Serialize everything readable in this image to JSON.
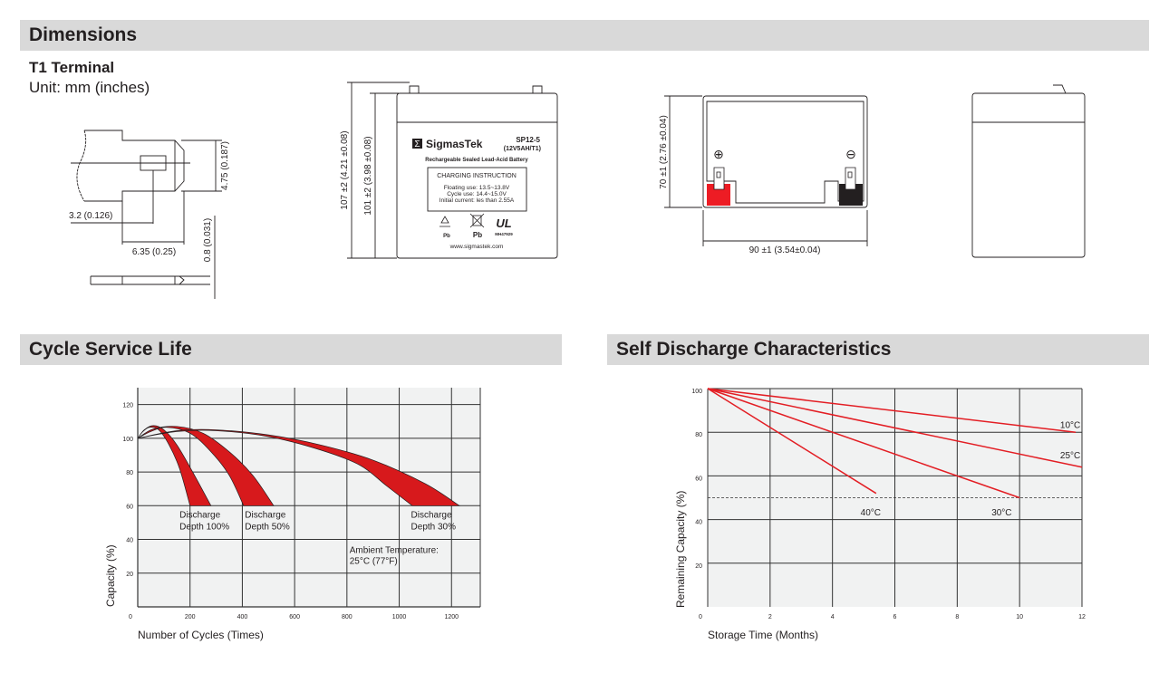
{
  "sections": {
    "dimensions": "Dimensions",
    "cycle_life": "Cycle Service Life",
    "self_discharge": "Self Discharge Characteristics"
  },
  "terminal": {
    "title": "T1 Terminal",
    "unit": "Unit: mm (inches)",
    "dim_height": "4.75 (0.187)",
    "dim_hole": "3.2 (0.126)",
    "dim_width": "6.35 (0.25)",
    "dim_thickness": "0.8 (0.031)"
  },
  "front_view": {
    "dim_total_height": "107 ±2 (4.21 ±0.08)",
    "dim_case_height": "101 ±2 (3.98 ±0.08)",
    "brand": "SigmasTek",
    "brand_logo": "Σ",
    "model": "SP12-5",
    "model_spec": "(12V5AH/T1)",
    "battery_type": "Rechargeable Sealed Lead-Acid Battery",
    "charging_title": "CHARGING INSTRUCTION",
    "charging_lines": [
      "Floating use: 13.5~13.8V",
      "Cycle use: 14.4~15.0V",
      "Initial current: les than 2.55A"
    ],
    "recycle_label": "Pb",
    "bin_label": "Pb",
    "ul_code": "MH47929",
    "website": "www.sigmastek.com"
  },
  "top_view": {
    "dim_depth": "70 ±1 (2.76 ±0.04)",
    "dim_width": "90 ±1 (3.54±0.04)",
    "positive_symbol": "⊕",
    "negative_symbol": "⊖",
    "positive_color": "#ed1c24",
    "negative_color": "#231f20"
  },
  "chart_data": [
    {
      "type": "area",
      "title": "",
      "xlabel": "Number of Cycles (Times)",
      "ylabel": "Capacity (%)",
      "xlim": [
        0,
        1310
      ],
      "ylim": [
        0,
        130
      ],
      "xticks": [
        0,
        200,
        400,
        600,
        800,
        1000,
        1200
      ],
      "yticks": [
        20,
        40,
        60,
        80,
        100,
        120
      ],
      "grid": true,
      "band_color": "#d7191c",
      "series": [
        {
          "name": "Discharge Depth 100%",
          "upper": [
            [
              0,
              100
            ],
            [
              25,
              105
            ],
            [
              60,
              107.5
            ],
            [
              100,
              105
            ],
            [
              150,
              96
            ],
            [
              210,
              80
            ],
            [
              280,
              60
            ]
          ],
          "lower": [
            [
              0,
              100
            ],
            [
              20,
              104
            ],
            [
              45,
              106.5
            ],
            [
              80,
              105
            ],
            [
              120,
              96
            ],
            [
              160,
              82
            ],
            [
              200,
              60
            ]
          ]
        },
        {
          "name": "Discharge Depth 50%",
          "upper": [
            [
              0,
              100
            ],
            [
              60,
              105.5
            ],
            [
              150,
              107
            ],
            [
              250,
              103
            ],
            [
              350,
              92
            ],
            [
              440,
              78
            ],
            [
              520,
              60
            ]
          ],
          "lower": [
            [
              0,
              100
            ],
            [
              50,
              104
            ],
            [
              110,
              106.5
            ],
            [
              200,
              103
            ],
            [
              280,
              92
            ],
            [
              350,
              78
            ],
            [
              405,
              60
            ]
          ]
        },
        {
          "name": "Discharge Depth 30%",
          "upper": [
            [
              0,
              100
            ],
            [
              150,
              104.5
            ],
            [
              300,
              105
            ],
            [
              500,
              102
            ],
            [
              700,
              96
            ],
            [
              900,
              87
            ],
            [
              1100,
              73
            ],
            [
              1230,
              60
            ]
          ],
          "lower": [
            [
              0,
              100
            ],
            [
              150,
              104
            ],
            [
              300,
              104.5
            ],
            [
              500,
              101
            ],
            [
              700,
              93
            ],
            [
              850,
              84
            ],
            [
              950,
              72
            ],
            [
              1050,
              60
            ]
          ]
        }
      ],
      "labels": [
        {
          "lines": [
            "Discharge",
            "Depth 100%"
          ],
          "x": 160,
          "y": 53
        },
        {
          "lines": [
            "Discharge",
            "Depth 50%"
          ],
          "x": 410,
          "y": 53
        },
        {
          "lines": [
            "Discharge",
            "Depth 30%"
          ],
          "x": 1045,
          "y": 53
        }
      ],
      "annotation": {
        "lines": [
          "Ambient Temperature:",
          "25°C (77°F)"
        ],
        "x": 810,
        "y": 32
      }
    },
    {
      "type": "line",
      "title": "",
      "xlabel": "Storage Time (Months)",
      "ylabel": "Remaining Capacity (%)",
      "xlim": [
        0,
        12
      ],
      "ylim": [
        0,
        100
      ],
      "xticks": [
        0,
        2,
        4,
        6,
        8,
        10,
        12
      ],
      "yticks": [
        20,
        40,
        60,
        80,
        100
      ],
      "grid": true,
      "reference_line": 50,
      "line_color": "#e31e24",
      "series": [
        {
          "name": "10°C",
          "points": [
            [
              0,
              100
            ],
            [
              11.8,
              80
            ]
          ],
          "label_at": [
            11.3,
            82
          ]
        },
        {
          "name": "25°C",
          "points": [
            [
              0,
              100
            ],
            [
              12,
              64
            ]
          ],
          "label_at": [
            11.3,
            68
          ]
        },
        {
          "name": "30°C",
          "points": [
            [
              0,
              100
            ],
            [
              10,
              50
            ]
          ],
          "label_at": [
            9.1,
            42
          ]
        },
        {
          "name": "40°C",
          "points": [
            [
              0,
              100
            ],
            [
              5.4,
              52
            ]
          ],
          "label_at": [
            4.9,
            42
          ]
        }
      ]
    }
  ]
}
